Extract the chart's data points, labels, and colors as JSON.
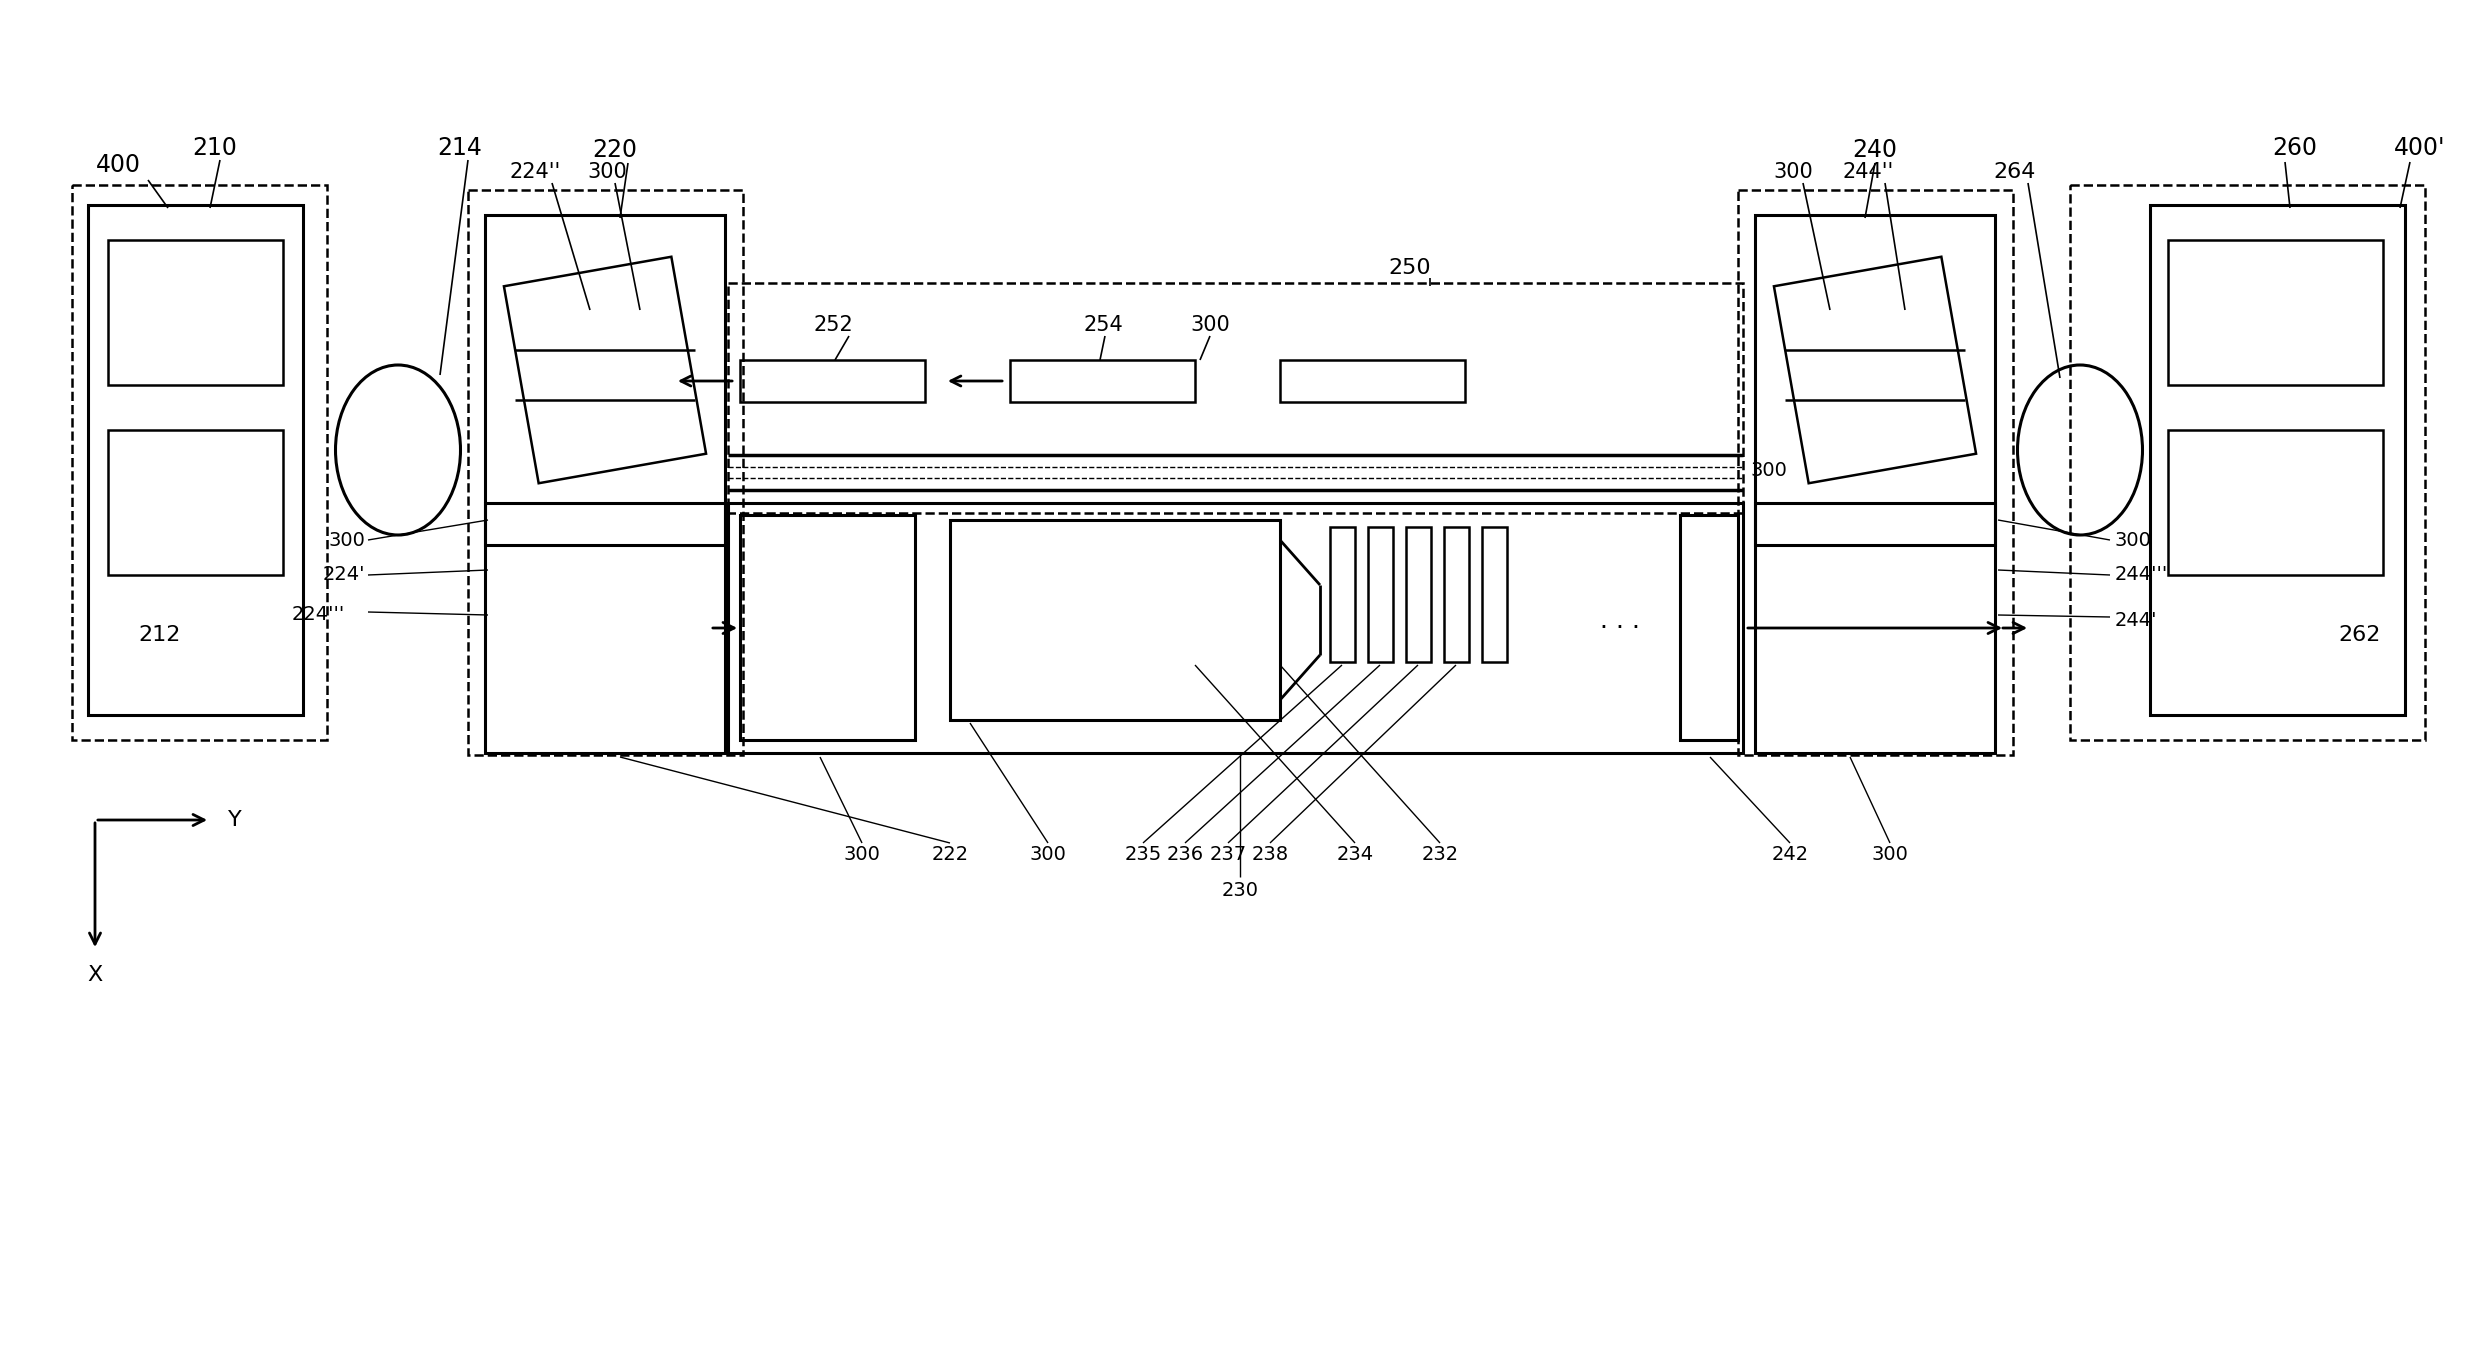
{
  "bg_color": "#ffffff",
  "line_color": "#000000",
  "fig_width": 24.81,
  "fig_height": 13.69,
  "dpi": 100
}
